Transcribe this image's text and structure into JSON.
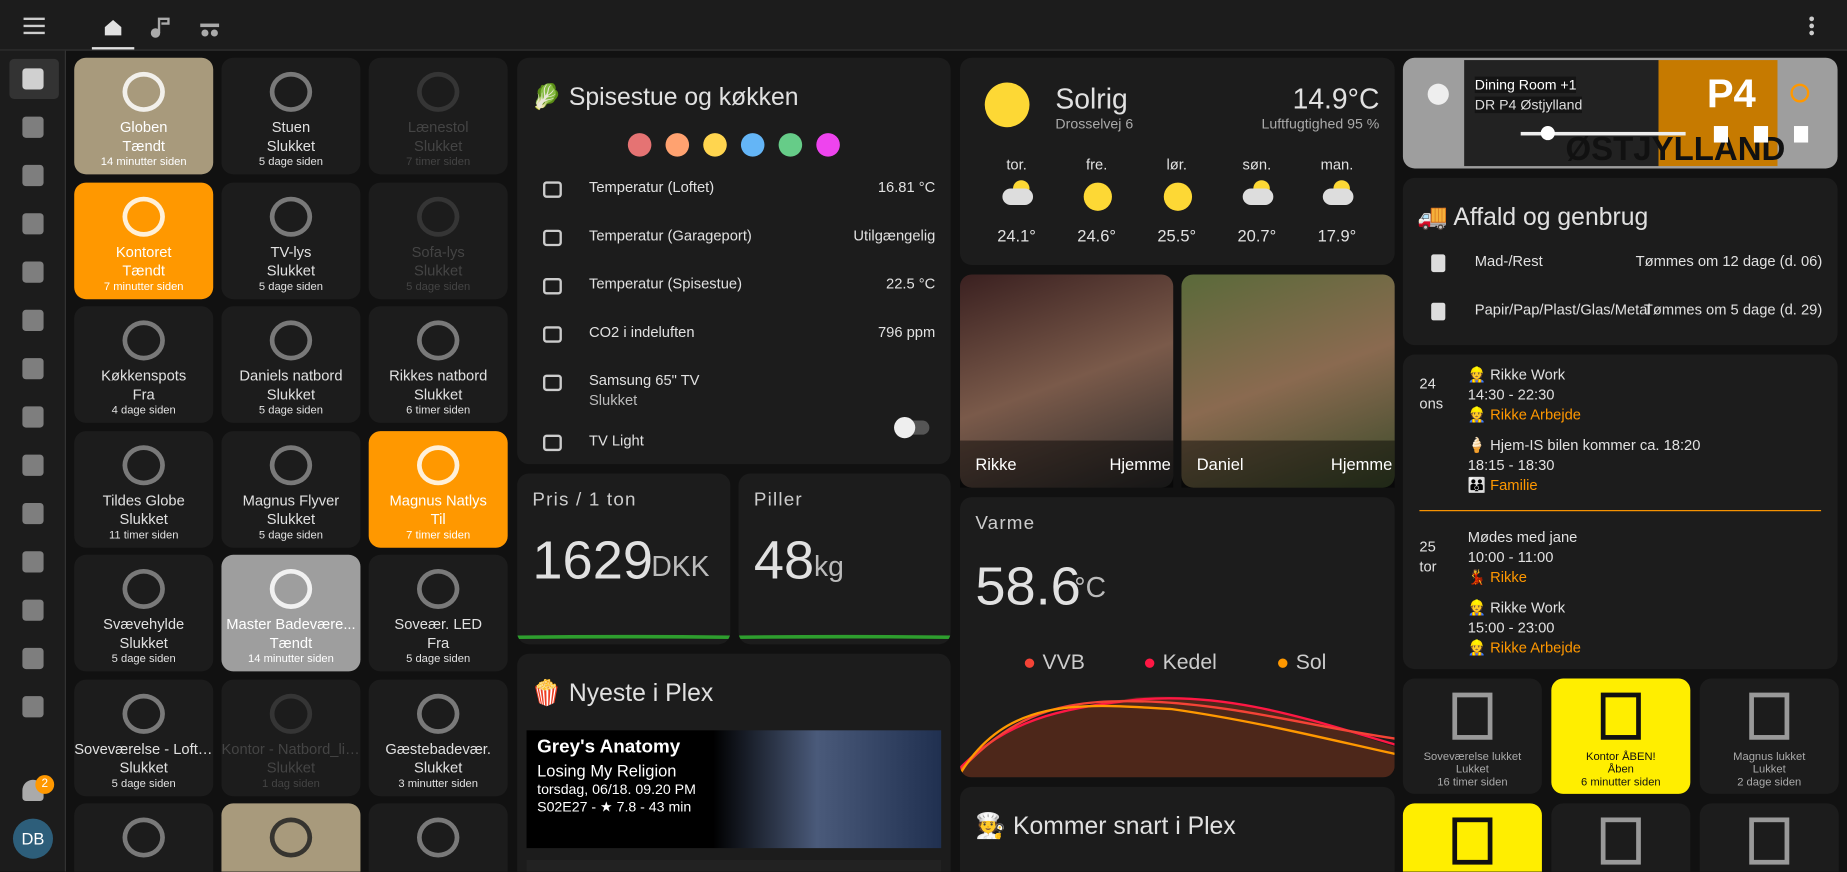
{
  "sidebar": {
    "avatar": "DB",
    "badge": "2"
  },
  "tiles": [
    {
      "name": "Globen",
      "state": "Tændt",
      "time": "14 minutter siden",
      "color": "#a89a7c"
    },
    {
      "name": "Stuen",
      "state": "Slukket",
      "time": "5 dage siden"
    },
    {
      "name": "Lænestol",
      "state": "Slukket",
      "time": "7 timer siden",
      "unavailable": true
    },
    {
      "name": "Kontoret",
      "state": "Tændt",
      "time": "7 minutter siden",
      "color": "#ff9800"
    },
    {
      "name": "TV-lys",
      "state": "Slukket",
      "time": "5 dage siden"
    },
    {
      "name": "Sofa-lys",
      "state": "Slukket",
      "time": "5 dage siden",
      "unavailable": true
    },
    {
      "name": "Køkkenspots",
      "state": "Fra",
      "time": "4 dage siden"
    },
    {
      "name": "Daniels natbord",
      "state": "Slukket",
      "time": "5 dage siden"
    },
    {
      "name": "Rikkes natbord",
      "state": "Slukket",
      "time": "6 timer siden"
    },
    {
      "name": "Tildes Globe",
      "state": "Slukket",
      "time": "11 timer siden"
    },
    {
      "name": "Magnus Flyver",
      "state": "Slukket",
      "time": "5 dage siden"
    },
    {
      "name": "Magnus Natlys",
      "state": "Til",
      "time": "7 timer siden",
      "color": "#ff9800"
    },
    {
      "name": "Svævehylde",
      "state": "Slukket",
      "time": "5 dage siden"
    },
    {
      "name": "Master Badevære...",
      "state": "Tændt",
      "time": "14 minutter siden",
      "color": "#9e9e9e"
    },
    {
      "name": "Soveær. LED",
      "state": "Fra",
      "time": "5 dage siden"
    },
    {
      "name": "Soveværelse - Loftlys",
      "state": "Slukket",
      "time": "5 dage siden"
    },
    {
      "name": "Kontor - Natbord_light",
      "state": "Slukket",
      "time": "1 dag siden",
      "unavailable": true
    },
    {
      "name": "Gæstebadevær.",
      "state": "Slukket",
      "time": "3 minutter siden"
    }
  ],
  "room": {
    "title": "🥬 Spisestue og køkken",
    "dots": [
      "#e57373",
      "#ffa270",
      "#ffd54f",
      "#64b5f6",
      "#66cc88",
      "#ee44ee"
    ],
    "rows": [
      {
        "label": "Temperatur (Loftet)",
        "value": "16.81 °C"
      },
      {
        "label": "Temperatur (Garageport)",
        "value": "Utilgængelig"
      },
      {
        "label": "Temperatur (Spisestue)",
        "value": "22.5 °C"
      },
      {
        "label": "CO2 i indeluften",
        "value": "796 ppm"
      },
      {
        "label": "Samsung 65\" TV",
        "value": "Slukket"
      },
      {
        "label": "TV Light"
      }
    ]
  },
  "price": {
    "title": "Pris / 1 ton",
    "value": "1629",
    "unit": "DKK"
  },
  "pills": {
    "title": "Piller",
    "value": "48",
    "unit": "kg"
  },
  "plex": {
    "title": "🍿 Nyeste i Plex",
    "show": "Grey's Anatomy",
    "episode": "Losing My Religion",
    "aired": "torsdag, 06/18. 09.20 PM",
    "info": "S02E27 - ★ 7.8 - 43 min"
  },
  "weather": {
    "condition": "Solrig",
    "location": "Drosselvej 6",
    "temperature": "14.9°C",
    "humidity": "Luftfugtighed 95 %",
    "forecast": [
      {
        "day": "tor.",
        "temp": "24.1°"
      },
      {
        "day": "fre.",
        "temp": "24.6°"
      },
      {
        "day": "lør.",
        "temp": "25.5°"
      },
      {
        "day": "søn.",
        "temp": "20.7°"
      },
      {
        "day": "man.",
        "temp": "17.9°"
      }
    ]
  },
  "people": [
    {
      "name": "Rikke",
      "state": "Hjemme"
    },
    {
      "name": "Daniel",
      "state": "Hjemme"
    }
  ],
  "heating": {
    "title": "Varme",
    "value": "58.6",
    "unit": "°C",
    "legend": [
      {
        "name": "VVB",
        "color": "#f44336"
      },
      {
        "name": "Kedel",
        "color": "#ff1744"
      },
      {
        "name": "Sol",
        "color": "#ff9800"
      }
    ]
  },
  "soon": {
    "title": "🧑‍🍳 Kommer snart i Plex"
  },
  "media": {
    "player": "Dining Room +1",
    "station": "DR P4 Østjylland",
    "logo_top": "P4",
    "logo_bottom": "ØSTJYLLAND"
  },
  "waste": {
    "title": "🚚 Affald og genbrug",
    "rows": [
      {
        "label": "Mad-/Rest",
        "value": "Tømmes om 12 dage (d. 06)"
      },
      {
        "label": "Papir/Pap/Plast/Glas/Metal",
        "value": "Tømmes om 5 dage (d. 29)"
      }
    ]
  },
  "calendar": [
    {
      "day": "24",
      "weekday": "ons",
      "events": [
        {
          "title": "👷 Rikke Work",
          "time": "14:30 - 22:30",
          "calendar": "👷 Rikke Arbejde"
        },
        {
          "title": "🍦 Hjem-IS bilen kommer ca. 18:20",
          "time": "18:15 - 18:30",
          "calendar": "👪 Familie"
        }
      ]
    },
    {
      "day": "25",
      "weekday": "tor",
      "events": [
        {
          "title": "Mødes med jane",
          "time": "10:00 - 11:00",
          "calendar": "💃 Rikke"
        },
        {
          "title": "👷 Rikke Work",
          "time": "15:00 - 23:00",
          "calendar": "👷 Rikke Arbejde"
        }
      ]
    }
  ],
  "doors": [
    {
      "name": "Soveværelse lukket",
      "state": "Lukket",
      "time": "16 timer siden"
    },
    {
      "name": "Kontor ÅBEN!",
      "state": "Åben",
      "time": "6 minutter siden",
      "color": "#ffee00"
    },
    {
      "name": "Magnus lukket",
      "state": "Lukket",
      "time": "2 dage siden"
    }
  ]
}
